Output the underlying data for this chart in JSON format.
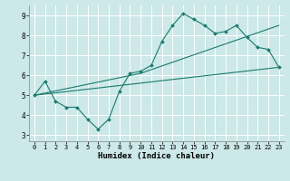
{
  "xlabel": "Humidex (Indice chaleur)",
  "bg_color": "#cce8e8",
  "grid_color": "#ffffff",
  "line_color": "#1a7a6e",
  "line1_x": [
    0,
    1,
    2,
    3,
    4,
    5,
    6,
    7,
    8,
    9,
    10,
    11,
    12,
    13,
    14,
    15,
    16,
    17,
    18,
    19,
    20,
    21,
    22,
    23
  ],
  "line1_y": [
    5.0,
    5.7,
    4.7,
    4.4,
    4.4,
    3.8,
    3.3,
    3.8,
    5.2,
    6.1,
    6.2,
    6.5,
    7.7,
    8.5,
    9.1,
    8.8,
    8.5,
    8.1,
    8.2,
    8.5,
    7.9,
    7.4,
    7.3,
    6.4
  ],
  "line2_x": [
    0,
    10,
    23
  ],
  "line2_y": [
    5.0,
    6.1,
    8.5
  ],
  "line3_x": [
    0,
    23
  ],
  "line3_y": [
    5.0,
    6.4
  ],
  "xlim": [
    -0.5,
    23.5
  ],
  "ylim": [
    2.7,
    9.5
  ],
  "yticks": [
    3,
    4,
    5,
    6,
    7,
    8,
    9
  ],
  "xticks": [
    0,
    1,
    2,
    3,
    4,
    5,
    6,
    7,
    8,
    9,
    10,
    11,
    12,
    13,
    14,
    15,
    16,
    17,
    18,
    19,
    20,
    21,
    22,
    23
  ]
}
